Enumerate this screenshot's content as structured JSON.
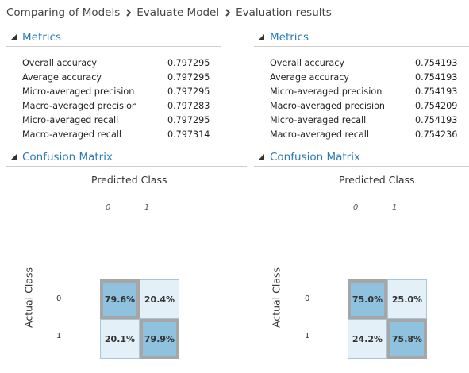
{
  "breadcrumb": {
    "items": [
      "Comparing of Models",
      "Evaluate Model",
      "Evaluation results"
    ]
  },
  "sections": {
    "metrics_title": "Metrics",
    "confusion_title": "Confusion Matrix"
  },
  "metric_names": [
    "Overall accuracy",
    "Average accuracy",
    "Micro-averaged precision",
    "Macro-averaged precision",
    "Micro-averaged recall",
    "Macro-averaged recall"
  ],
  "left": {
    "metric_values": [
      "0.797295",
      "0.797295",
      "0.797295",
      "0.797283",
      "0.797295",
      "0.797314"
    ],
    "confusion": {
      "predicted_label": "Predicted Class",
      "actual_label": "Actual Class",
      "col_labels": [
        "0",
        "1"
      ],
      "row_labels": [
        "0",
        "1"
      ],
      "cells": [
        [
          "79.6%",
          "20.4%"
        ],
        [
          "20.1%",
          "79.9%"
        ]
      ]
    }
  },
  "right": {
    "metric_values": [
      "0.754193",
      "0.754193",
      "0.754193",
      "0.754209",
      "0.754193",
      "0.754236"
    ],
    "confusion": {
      "predicted_label": "Predicted Class",
      "actual_label": "Actual Class",
      "col_labels": [
        "0",
        "1"
      ],
      "row_labels": [
        "0",
        "1"
      ],
      "cells": [
        [
          "75.0%",
          "25.0%"
        ],
        [
          "24.2%",
          "75.8%"
        ]
      ]
    }
  },
  "colors": {
    "accent": "#2b7bb9",
    "diagonal_cell": "#8ec2de",
    "off_diagonal_cell": "#e4f0f8",
    "diagonal_border": "#a6a6a6"
  },
  "icons": {
    "breadcrumb_separator": "chevron-right-icon",
    "section_toggle": "collapse-triangle-icon"
  }
}
